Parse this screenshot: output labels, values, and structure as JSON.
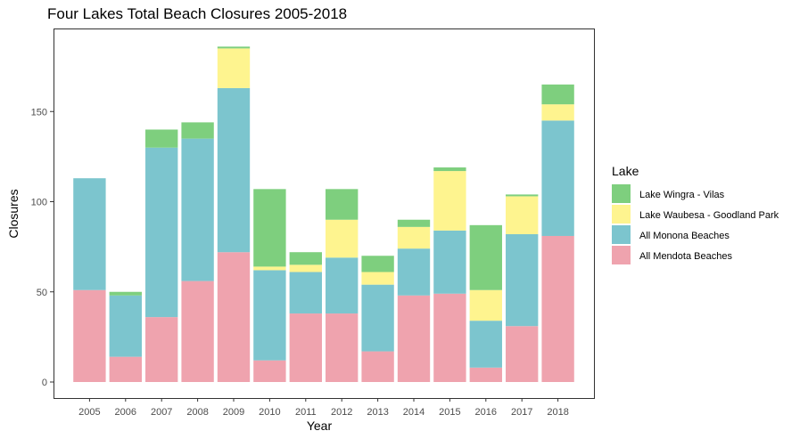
{
  "chart_data": {
    "type": "bar",
    "stacked": true,
    "title": "Four Lakes Total Beach Closures 2005-2018",
    "xlabel": "Year",
    "ylabel": "Closures",
    "ylim": [
      0,
      192
    ],
    "yticks": [
      0,
      50,
      100,
      150
    ],
    "grid": false,
    "legend_title": "Lake",
    "legend_position": "right",
    "categories": [
      "2005",
      "2006",
      "2007",
      "2008",
      "2009",
      "2010",
      "2011",
      "2012",
      "2013",
      "2014",
      "2015",
      "2016",
      "2017",
      "2018"
    ],
    "series": [
      {
        "name": "All Mendota Beaches",
        "color": "#EFA3AE",
        "values": [
          51,
          14,
          36,
          56,
          72,
          12,
          38,
          38,
          17,
          48,
          49,
          8,
          31,
          81
        ]
      },
      {
        "name": "All Monona Beaches",
        "color": "#7CC5CE",
        "values": [
          62,
          34,
          94,
          79,
          91,
          50,
          23,
          31,
          37,
          26,
          35,
          26,
          51,
          64
        ]
      },
      {
        "name": "Lake Waubesa - Goodland Park",
        "color": "#FEF48F",
        "values": [
          0,
          0,
          0,
          0,
          22,
          2,
          4,
          21,
          7,
          12,
          33,
          17,
          21,
          9
        ]
      },
      {
        "name": "Lake Wingra - Vilas",
        "color": "#7ECF7E",
        "values": [
          0,
          2,
          10,
          9,
          1,
          43,
          7,
          17,
          9,
          4,
          2,
          36,
          1,
          11
        ]
      }
    ],
    "legend_order": [
      "Lake Wingra - Vilas",
      "Lake Waubesa - Goodland Park",
      "All Monona Beaches",
      "All Mendota Beaches"
    ]
  }
}
